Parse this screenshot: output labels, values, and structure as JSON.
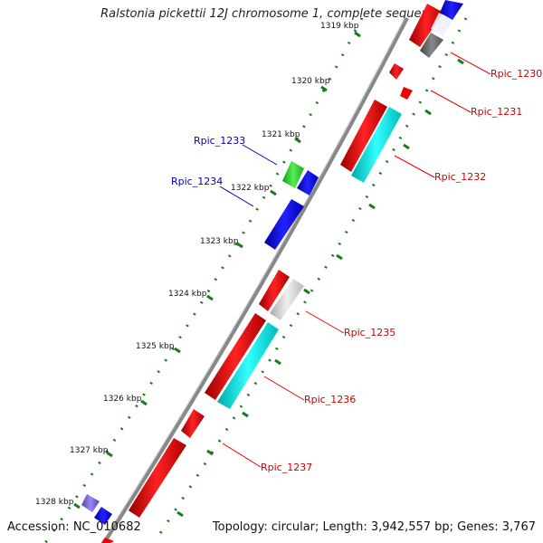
{
  "title": "Ralstonia pickettii 12J chromosome 1, complete sequence",
  "footer": {
    "accession": "Accession: NC_010682",
    "summary": "Topology: circular; Length: 3,942,557 bp; Genes: 3,767"
  },
  "scale_labels": [
    "1319 kbp",
    "1320 kbp",
    "1321 kbp",
    "1322 kbp",
    "1323 kbp",
    "1324 kbp",
    "1325 kbp",
    "1326 kbp",
    "1327 kbp",
    "1328 kbp"
  ],
  "gene_labels": [
    {
      "name": "Rpic_1230",
      "color": "#cc0000"
    },
    {
      "name": "Rpic_1231",
      "color": "#cc0000"
    },
    {
      "name": "Rpic_1232",
      "color": "#cc0000"
    },
    {
      "name": "Rpic_1233",
      "color": "#0000bb"
    },
    {
      "name": "Rpic_1234",
      "color": "#0000bb"
    },
    {
      "name": "Rpic_1235",
      "color": "#cc0000"
    },
    {
      "name": "Rpic_1236",
      "color": "#cc0000"
    },
    {
      "name": "Rpic_1237",
      "color": "#cc0000"
    }
  ],
  "colors": {
    "backbone": "#888888",
    "tick_dot": "#1a7a1a",
    "forward": "#0000ee",
    "reverse": "#ee0000",
    "cyan": "#00eeee",
    "grey": "#777777",
    "light_grey": "#cccccc",
    "green": "#33cc33",
    "purple": "#7766cc"
  }
}
